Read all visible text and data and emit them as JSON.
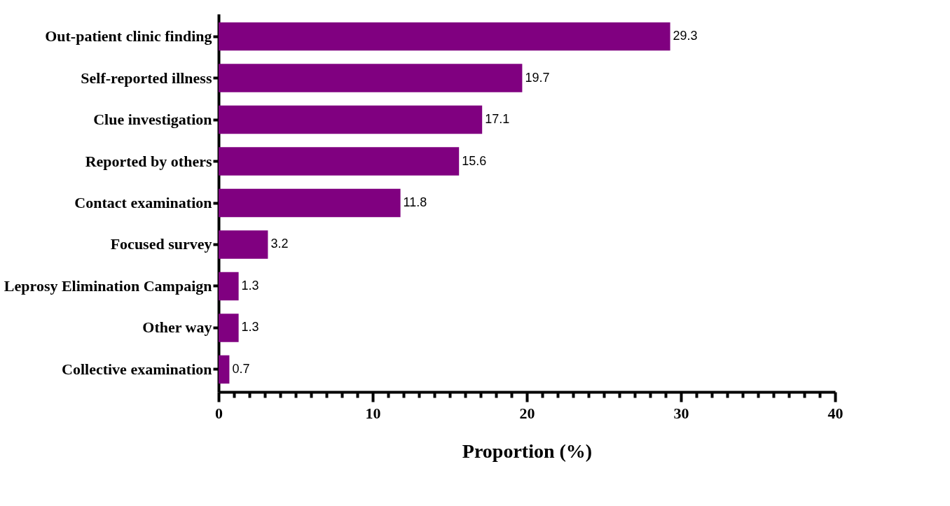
{
  "chart_data": {
    "type": "bar",
    "orientation": "horizontal",
    "xlabel": "Proportion (%)",
    "categories": [
      "Out-patient clinic finding",
      "Self-reported illness",
      "Clue investigation",
      "Reported by others",
      "Contact examination",
      "Focused survey",
      "Leprosy Elimination Campaign",
      "Other way",
      "Collective examination"
    ],
    "values": [
      29.3,
      19.7,
      17.1,
      15.6,
      11.8,
      3.2,
      1.3,
      1.3,
      0.7
    ],
    "color": "#800080",
    "data_labels": true,
    "xlim": [
      0,
      40
    ],
    "xticks": [
      0,
      {
        "value": 1,
        "label": null
      },
      {
        "value": 2,
        "label": null
      },
      {
        "value": 3,
        "label": null
      },
      {
        "value": 4,
        "label": null
      },
      {
        "value": 5,
        "label": null
      },
      {
        "value": 6,
        "label": null
      },
      {
        "value": 7,
        "label": null
      },
      {
        "value": 8,
        "label": null
      },
      {
        "value": 9,
        "label": null
      },
      10,
      {
        "value": 11,
        "label": null
      },
      {
        "value": 12,
        "label": null
      },
      {
        "value": 13,
        "label": null
      },
      {
        "value": 14,
        "label": null
      },
      {
        "value": 15,
        "label": null
      },
      {
        "value": 16,
        "label": null
      },
      {
        "value": 17,
        "label": null
      },
      {
        "value": 18,
        "label": null
      },
      {
        "value": 19,
        "label": null
      },
      20,
      {
        "value": 21,
        "label": null
      },
      {
        "value": 22,
        "label": null
      },
      {
        "value": 23,
        "label": null
      },
      {
        "value": 24,
        "label": null
      },
      {
        "value": 25,
        "label": null
      },
      {
        "value": 26,
        "label": null
      },
      {
        "value": 27,
        "label": null
      },
      {
        "value": 28,
        "label": null
      },
      {
        "value": 29,
        "label": null
      },
      30,
      {
        "value": 31,
        "label": null
      },
      {
        "value": 32,
        "label": null
      },
      {
        "value": 33,
        "label": null
      },
      {
        "value": 34,
        "label": null
      },
      {
        "value": 35,
        "label": null
      },
      {
        "value": 36,
        "label": null
      },
      {
        "value": 37,
        "label": null
      },
      {
        "value": 38,
        "label": null
      },
      {
        "value": 39,
        "label": null
      },
      40
    ]
  }
}
